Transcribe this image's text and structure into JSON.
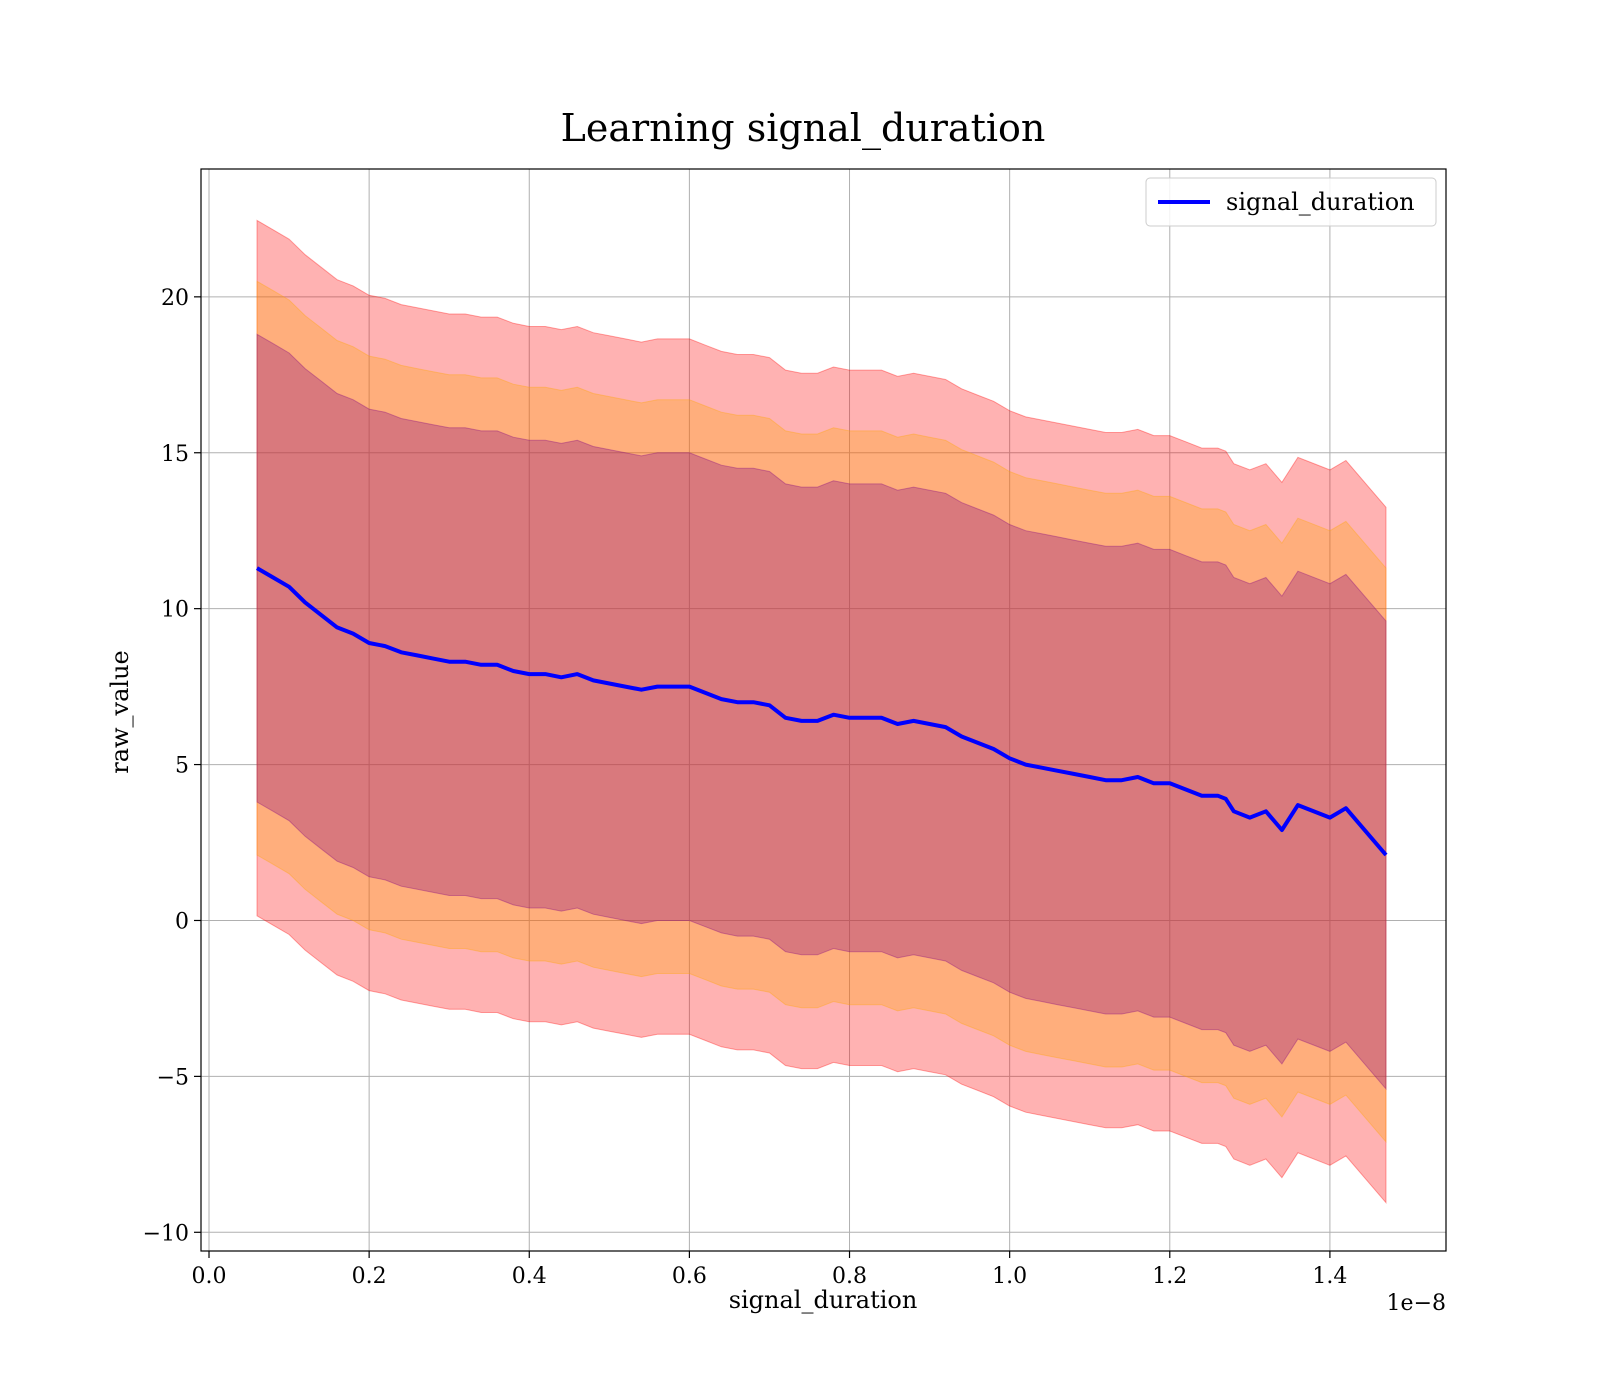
{
  "chart_data": {
    "type": "area",
    "title": "Learning signal_duration",
    "xlabel": "signal_duration",
    "ylabel": "raw_value",
    "x_offset_label": "1e−8",
    "xlim": [
      -0.01,
      1.545
    ],
    "ylim": [
      -10.6,
      24.1
    ],
    "x_ticks": [
      0.0,
      0.2,
      0.4,
      0.6,
      0.8,
      1.0,
      1.2,
      1.4
    ],
    "x_tick_labels": [
      "0.0",
      "0.2",
      "0.4",
      "0.6",
      "0.8",
      "1.0",
      "1.2",
      "1.4"
    ],
    "y_ticks": [
      -10,
      -5,
      0,
      5,
      10,
      15,
      20
    ],
    "y_tick_labels": [
      "−10",
      "−5",
      "0",
      "5",
      "10",
      "15",
      "20"
    ],
    "grid": true,
    "legend": {
      "position": "top-right",
      "entries": [
        "signal_duration"
      ]
    },
    "x": [
      0.06,
      0.08,
      0.1,
      0.12,
      0.14,
      0.16,
      0.18,
      0.2,
      0.22,
      0.24,
      0.26,
      0.28,
      0.3,
      0.32,
      0.34,
      0.36,
      0.38,
      0.4,
      0.42,
      0.44,
      0.46,
      0.48,
      0.5,
      0.52,
      0.54,
      0.56,
      0.58,
      0.6,
      0.62,
      0.64,
      0.66,
      0.68,
      0.7,
      0.72,
      0.74,
      0.76,
      0.78,
      0.8,
      0.82,
      0.84,
      0.86,
      0.88,
      0.9,
      0.92,
      0.94,
      0.96,
      0.98,
      1.0,
      1.02,
      1.04,
      1.06,
      1.08,
      1.1,
      1.12,
      1.14,
      1.16,
      1.18,
      1.2,
      1.22,
      1.24,
      1.26,
      1.27,
      1.28,
      1.3,
      1.32,
      1.34,
      1.36,
      1.4,
      1.42,
      1.47
    ],
    "series": [
      {
        "name": "signal_duration",
        "color": "#0000ff",
        "values": [
          11.3,
          11.0,
          10.7,
          10.2,
          9.8,
          9.4,
          9.2,
          8.9,
          8.8,
          8.6,
          8.5,
          8.4,
          8.3,
          8.3,
          8.2,
          8.2,
          8.0,
          7.9,
          7.9,
          7.8,
          7.9,
          7.7,
          7.6,
          7.5,
          7.4,
          7.5,
          7.5,
          7.5,
          7.3,
          7.1,
          7.0,
          7.0,
          6.9,
          6.5,
          6.4,
          6.4,
          6.6,
          6.5,
          6.5,
          6.5,
          6.3,
          6.4,
          6.3,
          6.2,
          5.9,
          5.7,
          5.5,
          5.2,
          5.0,
          4.9,
          4.8,
          4.7,
          4.6,
          4.5,
          4.5,
          4.6,
          4.4,
          4.4,
          4.2,
          4.0,
          4.0,
          3.9,
          3.5,
          3.3,
          3.5,
          2.9,
          3.7,
          3.3,
          3.6,
          2.1
        ]
      }
    ],
    "bands": [
      {
        "color": "#ff0000",
        "opacity": 0.3,
        "offset": 11.15
      },
      {
        "color": "#ffa500",
        "opacity": 0.3,
        "offset": 9.2
      },
      {
        "color": "#800080",
        "opacity": 0.3,
        "offset": 7.5
      }
    ]
  }
}
